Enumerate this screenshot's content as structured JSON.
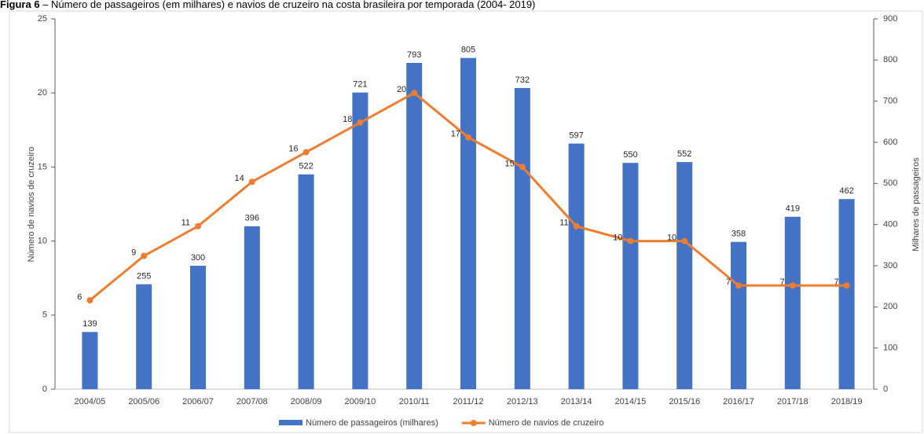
{
  "chart_data": {
    "type": "bar_line",
    "figure_label": "Figura 6",
    "title": " – Número de passageiros (em milhares) e navios de cruzeiro na costa brasileira por temporada (2004- 2019)",
    "y_label": "Número de navios de cruzeiro",
    "y2_label": "Milhares de passageiros",
    "categories": [
      "2004/05",
      "2005/06",
      "2006/07",
      "2007/08",
      "2008/09",
      "2009/10",
      "2010/11",
      "2011/12",
      "2012/13",
      "2013/14",
      "2014/15",
      "2015/16",
      "2016/17",
      "2017/18",
      "2018/19"
    ],
    "series": [
      {
        "name": "Número de passageiros (milhares)",
        "type": "bar",
        "axis": "y2",
        "color": "#4472c4",
        "values": [
          139,
          255,
          300,
          396,
          522,
          721,
          793,
          805,
          732,
          597,
          550,
          552,
          358,
          419,
          462
        ]
      },
      {
        "name": "Número de navios de cruzeiro",
        "type": "line",
        "axis": "y",
        "color": "#ed7d31",
        "values": [
          6,
          9,
          11,
          14,
          16,
          18,
          20,
          17,
          15,
          11,
          10,
          10,
          7,
          7,
          7
        ]
      }
    ],
    "ylim": [
      0,
      25
    ],
    "yticks": [
      0,
      5,
      10,
      15,
      20,
      25
    ],
    "y2lim": [
      0,
      900
    ],
    "y2ticks": [
      0,
      100,
      200,
      300,
      400,
      500,
      600,
      700,
      800,
      900
    ],
    "grid": false
  }
}
